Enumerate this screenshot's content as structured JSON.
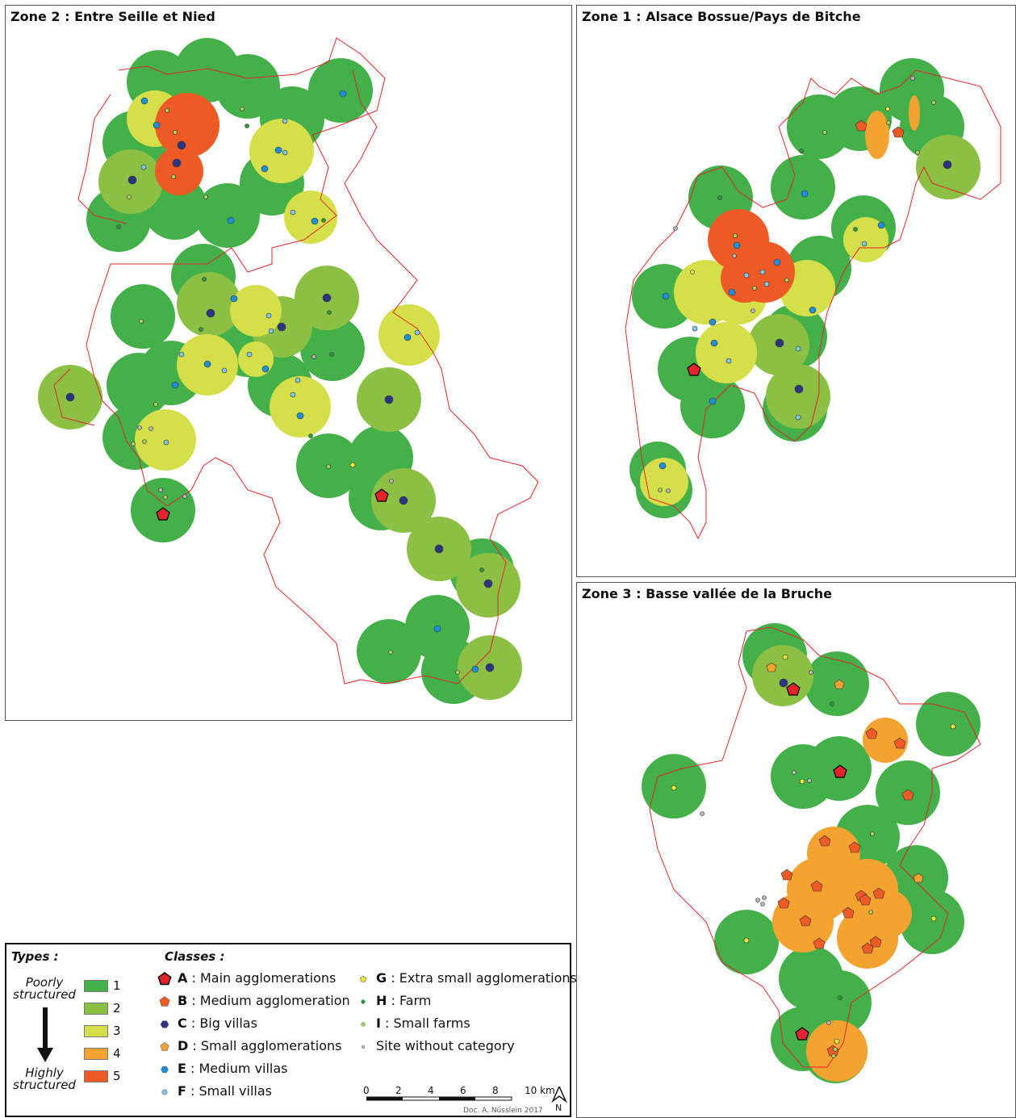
{
  "zones": {
    "zone2": {
      "title": "Zone 2 : Entre Seille et Nied"
    },
    "zone1": {
      "title": "Zone 1 : Alsace Bossue/Pays de Bitche"
    },
    "zone3": {
      "title": "Zone 3 : Basse vallée de la Bruche"
    }
  },
  "legend": {
    "types_heading": "Types :",
    "poorly": [
      "Poorly",
      "structured"
    ],
    "highly": [
      "Highly",
      "structured"
    ],
    "types": [
      {
        "label": "1",
        "color": "#44b04a"
      },
      {
        "label": "2",
        "color": "#8cc044"
      },
      {
        "label": "3",
        "color": "#d5df4a"
      },
      {
        "label": "4",
        "color": "#f4a230"
      },
      {
        "label": "5",
        "color": "#ee5a26"
      }
    ],
    "classes_heading": "Classes :",
    "classes": [
      {
        "letter": "A",
        "text": " : Main agglomerations",
        "color": "#e3242b",
        "shape": "pentagon-large"
      },
      {
        "letter": "B",
        "text": " : Medium agglomeration",
        "color": "#ee5a26",
        "shape": "pentagon"
      },
      {
        "letter": "C",
        "text": " : Big villas",
        "color": "#2e3580",
        "shape": "hexagon"
      },
      {
        "letter": "D",
        "text": " : Small agglomerations",
        "color": "#f4a230",
        "shape": "pentagon-small"
      },
      {
        "letter": "E",
        "text": " : Medium villas",
        "color": "#1e8fd8",
        "shape": "hexagon-small"
      },
      {
        "letter": "F",
        "text": " : Small villas",
        "color": "#7fc8ec",
        "shape": "hexagon-tiny"
      },
      {
        "letter": "G",
        "text": " : Extra small agglomerations",
        "color": "#e8e63a",
        "shape": "pentagon-tiny"
      },
      {
        "letter": "H",
        "text": " : Farm",
        "color": "#2e9a3c",
        "shape": "dot"
      },
      {
        "letter": "I",
        "text": " : Small farms",
        "color": "#a8d060",
        "shape": "dot-small"
      },
      {
        "letter": "",
        "text": "Site without category",
        "color": "#b8b8b8",
        "shape": "dot-grey"
      }
    ],
    "scale": {
      "ticks": [
        "0",
        "2",
        "4",
        "6",
        "8",
        "10 km"
      ]
    },
    "north": "N",
    "credit": "Doc. A. Nüsslein 2017"
  }
}
